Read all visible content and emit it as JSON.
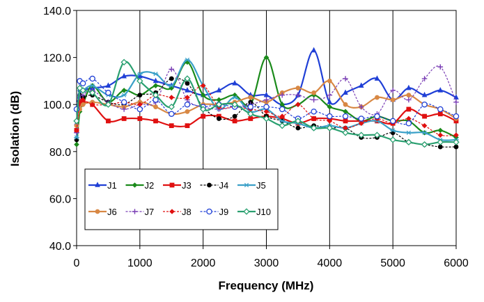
{
  "chart_data": {
    "type": "line",
    "title": "",
    "xlabel": "Frequency (MHz)",
    "ylabel": "Isolation (dB)",
    "xlim": [
      0,
      6000
    ],
    "ylim": [
      40,
      140
    ],
    "xticks": [
      0,
      1000,
      2000,
      3000,
      4000,
      5000,
      6000
    ],
    "xtick_labels": [
      "0",
      "1000",
      "2000",
      "3000",
      "4000",
      "5000",
      "6000"
    ],
    "yticks": [
      40,
      60,
      80,
      100,
      120,
      140
    ],
    "ytick_labels": [
      "40.0",
      "60.0",
      "80.0",
      "100.0",
      "120.0",
      "140.0"
    ],
    "grid": "vertical gridlines only",
    "legend_position": "lower-left inside plot area",
    "series": [
      {
        "name": "J1",
        "color": "#1f3fd6",
        "marker": "triangle",
        "dashed": false,
        "x": [
          0,
          50,
          100,
          250,
          500,
          750,
          1000,
          1250,
          1500,
          1750,
          2000,
          2250,
          2500,
          2750,
          3000,
          3250,
          3500,
          3750,
          4000,
          4250,
          4500,
          4750,
          5000,
          5250,
          5500,
          5750,
          6000
        ],
        "y": [
          92,
          104,
          106,
          107,
          108,
          112,
          112,
          110,
          108,
          106,
          104,
          106,
          109,
          104,
          104,
          100,
          104,
          123,
          101,
          105,
          108,
          111,
          102,
          107,
          104,
          106,
          103
        ]
      },
      {
        "name": "J2",
        "color": "#1a8a1a",
        "marker": "diamond",
        "dashed": false,
        "x": [
          0,
          50,
          100,
          250,
          500,
          750,
          1000,
          1250,
          1500,
          1750,
          2000,
          2250,
          2500,
          2750,
          3000,
          3250,
          3500,
          3750,
          4000,
          4250,
          4500,
          4750,
          5000,
          5250,
          5500,
          5750,
          6000
        ],
        "y": [
          83,
          97,
          100,
          108,
          101,
          106,
          104,
          108,
          107,
          118,
          104,
          102,
          104,
          100,
          120,
          100,
          100,
          104,
          99,
          97,
          93,
          95,
          93,
          93,
          88,
          89,
          86
        ]
      },
      {
        "name": "J3",
        "color": "#e01010",
        "marker": "square",
        "dashed": false,
        "x": [
          0,
          50,
          100,
          250,
          500,
          750,
          1000,
          1250,
          1500,
          1750,
          2000,
          2250,
          2500,
          2750,
          3000,
          3250,
          3500,
          3750,
          4000,
          4250,
          4500,
          4750,
          5000,
          5250,
          5500,
          5750,
          6000
        ],
        "y": [
          89,
          100,
          101,
          100,
          93,
          94,
          94,
          93,
          91,
          91,
          95,
          95,
          93,
          94,
          95,
          94,
          92,
          94,
          94,
          93,
          93,
          93,
          92,
          98,
          95,
          96,
          93
        ]
      },
      {
        "name": "J4",
        "color": "#000000",
        "marker": "circle",
        "dashed": true,
        "x": [
          0,
          50,
          100,
          250,
          500,
          750,
          1000,
          1250,
          1500,
          1750,
          2000,
          2250,
          2500,
          2750,
          3000,
          3250,
          3500,
          3750,
          4000,
          4250,
          4500,
          4750,
          5000,
          5250,
          5500,
          5750,
          6000
        ],
        "y": [
          85,
          104,
          103,
          104,
          101,
          100,
          104,
          105,
          111,
          109,
          99,
          94,
          95,
          101,
          95,
          93,
          90,
          91,
          90,
          90,
          86,
          86,
          88,
          84,
          83,
          82,
          82
        ]
      },
      {
        "name": "J5",
        "color": "#3aa0c8",
        "marker": "asterisk",
        "dashed": false,
        "x": [
          0,
          50,
          100,
          250,
          500,
          750,
          1000,
          1250,
          1500,
          1750,
          2000,
          2250,
          2500,
          2750,
          3000,
          3250,
          3500,
          3750,
          4000,
          4250,
          4500,
          4750,
          5000,
          5250,
          5500,
          5750,
          6000
        ],
        "y": [
          86,
          106,
          106,
          108,
          104,
          104,
          113,
          113,
          108,
          119,
          108,
          98,
          103,
          97,
          98,
          93,
          92,
          90,
          91,
          90,
          92,
          93,
          89,
          88,
          88,
          85,
          85
        ]
      },
      {
        "name": "J6",
        "color": "#d88844",
        "marker": "circle",
        "dashed": false,
        "x": [
          0,
          50,
          100,
          250,
          500,
          750,
          1000,
          1250,
          1500,
          1750,
          2000,
          2250,
          2500,
          2750,
          3000,
          3250,
          3500,
          3750,
          4000,
          4250,
          4500,
          4750,
          5000,
          5250,
          5500,
          5750,
          6000
        ],
        "y": [
          91,
          98,
          100,
          101,
          100,
          99,
          101,
          99,
          96,
          97,
          100,
          100,
          101,
          103,
          101,
          105,
          107,
          105,
          110,
          100,
          99,
          103,
          102,
          104,
          100,
          98,
          94
        ]
      },
      {
        "name": "J7",
        "color": "#7a3fb5",
        "marker": "plus",
        "dashed": true,
        "x": [
          0,
          50,
          100,
          250,
          500,
          750,
          1000,
          1250,
          1500,
          1750,
          2000,
          2250,
          2500,
          2750,
          3000,
          3250,
          3500,
          3750,
          4000,
          4250,
          4500,
          4750,
          5000,
          5250,
          5500,
          5750,
          6000
        ],
        "y": [
          88,
          102,
          104,
          106,
          101,
          98,
          100,
          101,
          115,
          102,
          99,
          98,
          99,
          100,
          102,
          104,
          104,
          102,
          104,
          111,
          99,
          96,
          106,
          102,
          111,
          116,
          101
        ]
      },
      {
        "name": "J8",
        "color": "#e01010",
        "marker": "diamond",
        "dashed": true,
        "x": [
          0,
          50,
          100,
          250,
          500,
          750,
          1000,
          1250,
          1500,
          1750,
          2000,
          2250,
          2500,
          2750,
          3000,
          3250,
          3500,
          3750,
          4000,
          4250,
          4500,
          4750,
          5000,
          5250,
          5500,
          5750,
          6000
        ],
        "y": [
          89,
          101,
          102,
          100,
          100,
          101,
          100,
          104,
          103,
          103,
          108,
          99,
          99,
          98,
          97,
          95,
          100,
          94,
          93,
          90,
          92,
          94,
          92,
          94,
          91,
          87,
          87
        ]
      },
      {
        "name": "J9",
        "color": "#1f3fd6",
        "marker": "open-circle",
        "dashed": true,
        "x": [
          0,
          50,
          100,
          250,
          500,
          750,
          1000,
          1250,
          1500,
          1750,
          2000,
          2250,
          2500,
          2750,
          3000,
          3250,
          3500,
          3750,
          4000,
          4250,
          4500,
          4750,
          5000,
          5250,
          5500,
          5750,
          6000
        ],
        "y": [
          98,
          110,
          109,
          111,
          105,
          101,
          98,
          102,
          96,
          100,
          99,
          100,
          99,
          99,
          99,
          98,
          94,
          97,
          95,
          95,
          94,
          95,
          93,
          92,
          100,
          98,
          95
        ]
      },
      {
        "name": "J10",
        "color": "#2aa070",
        "marker": "open-diamond",
        "dashed": false,
        "x": [
          0,
          50,
          100,
          250,
          500,
          750,
          1000,
          1250,
          1500,
          1750,
          2000,
          2250,
          2500,
          2750,
          3000,
          3250,
          3500,
          3750,
          4000,
          4250,
          4500,
          4750,
          5000,
          5250,
          5500,
          5750,
          6000
        ],
        "y": [
          93,
          107,
          106,
          105,
          100,
          118,
          110,
          104,
          99,
          111,
          98,
          100,
          100,
          96,
          94,
          91,
          93,
          90,
          90,
          88,
          87,
          87,
          85,
          84,
          83,
          84,
          84
        ]
      }
    ]
  }
}
